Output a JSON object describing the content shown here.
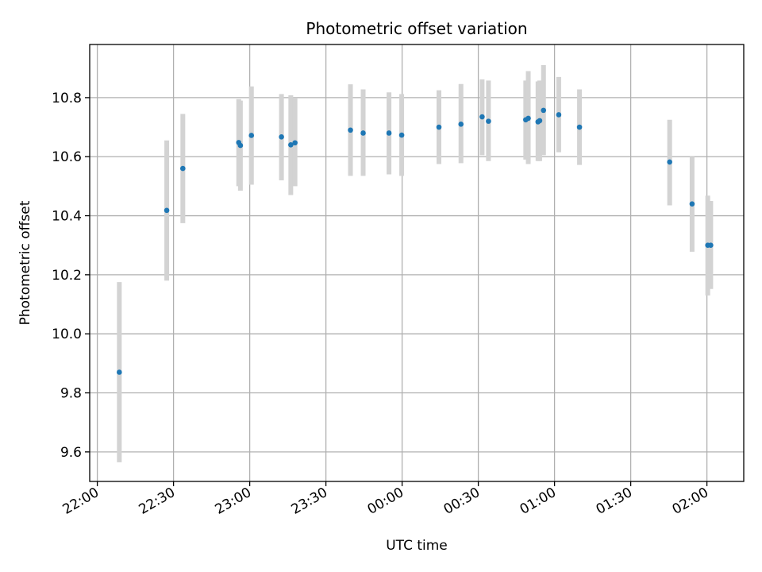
{
  "chart_data": {
    "type": "scatter",
    "title": "Photometric offset variation",
    "xlabel": "UTC time",
    "ylabel": "Photometric offset",
    "x_ticks": [
      "22:00",
      "22:30",
      "23:00",
      "23:30",
      "00:00",
      "00:30",
      "01:00",
      "01:30",
      "02:00"
    ],
    "x_tick_minutes": [
      0,
      30,
      60,
      90,
      120,
      150,
      180,
      210,
      240
    ],
    "xlim_minutes": [
      -3,
      254.5
    ],
    "y_ticks": [
      "9.6",
      "9.8",
      "10.0",
      "10.2",
      "10.4",
      "10.6",
      "10.8"
    ],
    "y_tick_values": [
      9.6,
      9.8,
      10.0,
      10.2,
      10.4,
      10.6,
      10.8
    ],
    "ylim": [
      9.5,
      10.98
    ],
    "grid": true,
    "colors": {
      "point": "#1f77b4",
      "errorbar": "#d3d3d3",
      "grid": "#b0b0b0",
      "axes": "#000000"
    },
    "points": [
      {
        "time": "22:08:40",
        "y": 9.87,
        "ylo": 9.565,
        "yhi": 10.175
      },
      {
        "time": "22:27:20",
        "y": 10.418,
        "ylo": 10.18,
        "yhi": 10.655
      },
      {
        "time": "22:33:40",
        "y": 10.56,
        "ylo": 10.375,
        "yhi": 10.745
      },
      {
        "time": "22:55:40",
        "y": 10.648,
        "ylo": 10.5,
        "yhi": 10.795
      },
      {
        "time": "22:56:20",
        "y": 10.638,
        "ylo": 10.485,
        "yhi": 10.79
      },
      {
        "time": "23:00:40",
        "y": 10.672,
        "ylo": 10.505,
        "yhi": 10.838
      },
      {
        "time": "23:12:30",
        "y": 10.667,
        "ylo": 10.52,
        "yhi": 10.812
      },
      {
        "time": "23:16:10",
        "y": 10.64,
        "ylo": 10.47,
        "yhi": 10.808
      },
      {
        "time": "23:17:50",
        "y": 10.647,
        "ylo": 10.5,
        "yhi": 10.8
      },
      {
        "time": "23:39:40",
        "y": 10.69,
        "ylo": 10.535,
        "yhi": 10.845
      },
      {
        "time": "23:44:40",
        "y": 10.68,
        "ylo": 10.535,
        "yhi": 10.828
      },
      {
        "time": "23:54:50",
        "y": 10.68,
        "ylo": 10.54,
        "yhi": 10.818
      },
      {
        "time": "23:59:50",
        "y": 10.673,
        "ylo": 10.535,
        "yhi": 10.812
      },
      {
        "time": "00:14:30",
        "y": 10.7,
        "ylo": 10.575,
        "yhi": 10.825
      },
      {
        "time": "00:23:10",
        "y": 10.71,
        "ylo": 10.578,
        "yhi": 10.846
      },
      {
        "time": "00:31:30",
        "y": 10.735,
        "ylo": 10.605,
        "yhi": 10.862
      },
      {
        "time": "00:34:00",
        "y": 10.72,
        "ylo": 10.585,
        "yhi": 10.858
      },
      {
        "time": "00:48:40",
        "y": 10.725,
        "ylo": 10.59,
        "yhi": 10.858
      },
      {
        "time": "00:49:40",
        "y": 10.73,
        "ylo": 10.575,
        "yhi": 10.89
      },
      {
        "time": "00:53:30",
        "y": 10.718,
        "ylo": 10.585,
        "yhi": 10.855
      },
      {
        "time": "00:54:10",
        "y": 10.722,
        "ylo": 10.585,
        "yhi": 10.858
      },
      {
        "time": "00:55:40",
        "y": 10.757,
        "ylo": 10.605,
        "yhi": 10.91
      },
      {
        "time": "01:01:40",
        "y": 10.742,
        "ylo": 10.615,
        "yhi": 10.87
      },
      {
        "time": "01:09:50",
        "y": 10.7,
        "ylo": 10.572,
        "yhi": 10.828
      },
      {
        "time": "01:45:20",
        "y": 10.582,
        "ylo": 10.435,
        "yhi": 10.725
      },
      {
        "time": "01:54:10",
        "y": 10.44,
        "ylo": 10.278,
        "yhi": 10.6
      },
      {
        "time": "02:00:20",
        "y": 10.3,
        "ylo": 10.13,
        "yhi": 10.468
      },
      {
        "time": "02:01:30",
        "y": 10.3,
        "ylo": 10.152,
        "yhi": 10.45
      }
    ]
  }
}
